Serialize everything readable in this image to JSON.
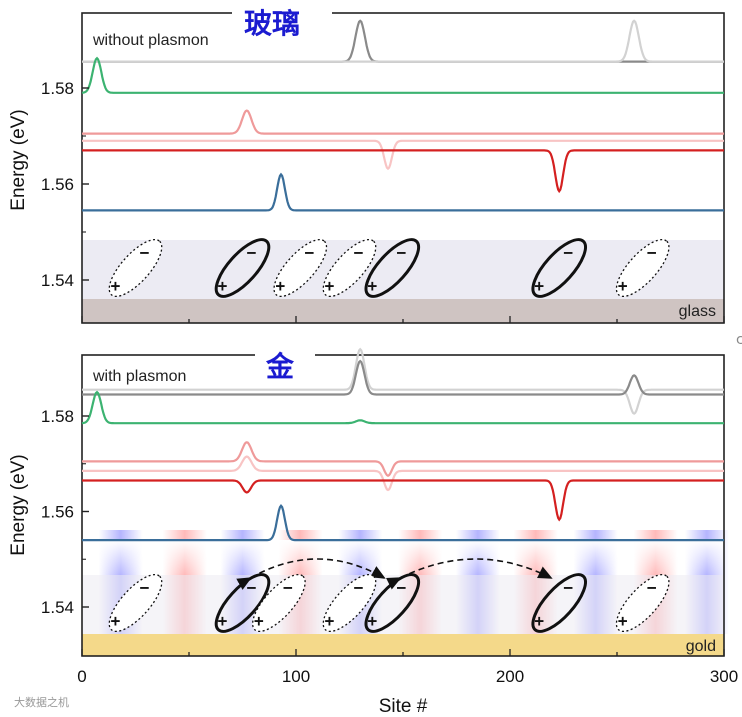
{
  "chart_data": {
    "type": "line",
    "xlabel": "Site #",
    "ylabel": "Energy (eV)",
    "xlim": [
      0,
      300
    ],
    "x_ticks": [
      0,
      100,
      200,
      300
    ],
    "ylim": [
      1.532,
      1.595
    ],
    "y_ticks": [
      1.54,
      1.56,
      1.58
    ],
    "y_tick_labels": [
      "1.54",
      "1.56",
      "1.58"
    ],
    "panels": [
      {
        "id": "top",
        "cn_title": "玻璃",
        "note": "without plasmon",
        "substrate_label": "glass",
        "series": [
          {
            "name": "gray",
            "color": "#8a8a8a",
            "baseline": 1.5855,
            "peaks": [
              {
                "x": 130,
                "amp": 0.0085,
                "w": 2.2
              }
            ]
          },
          {
            "name": "light-gray",
            "color": "#d2d2d2",
            "baseline": 1.5855,
            "peaks": [
              {
                "x": 258,
                "amp": 0.0085,
                "w": 2.2
              }
            ]
          },
          {
            "name": "green",
            "color": "#3cb371",
            "baseline": 1.579,
            "peaks": [
              {
                "x": 7,
                "amp": 0.0072,
                "w": 2.0
              }
            ]
          },
          {
            "name": "pink",
            "color": "#ef9a9a",
            "baseline": 1.5705,
            "peaks": [
              {
                "x": 77,
                "amp": 0.0048,
                "w": 2.2
              }
            ]
          },
          {
            "name": "light-pink",
            "color": "#f8c4c4",
            "baseline": 1.569,
            "peaks": [
              {
                "x": 143,
                "amp": -0.0058,
                "w": 1.8
              }
            ]
          },
          {
            "name": "red",
            "color": "#d42020",
            "baseline": 1.567,
            "peaks": [
              {
                "x": 223,
                "amp": -0.0085,
                "w": 1.8
              }
            ]
          },
          {
            "name": "blue",
            "color": "#3a6e9a",
            "baseline": 1.5545,
            "peaks": [
              {
                "x": 93,
                "amp": 0.0075,
                "w": 1.8
              }
            ]
          }
        ],
        "dipoles": [
          {
            "x": 25,
            "highlight": false
          },
          {
            "x": 75,
            "highlight": true
          },
          {
            "x": 102,
            "highlight": false
          },
          {
            "x": 125,
            "highlight": false
          },
          {
            "x": 145,
            "highlight": true
          },
          {
            "x": 223,
            "highlight": true
          },
          {
            "x": 262,
            "highlight": false
          }
        ]
      },
      {
        "id": "bottom",
        "cn_title": "金",
        "note": "with plasmon",
        "substrate_label": "gold",
        "series": [
          {
            "name": "light-gray",
            "color": "#d2d2d2",
            "baseline": 1.5855,
            "peaks": [
              {
                "x": 130,
                "amp": 0.0085,
                "w": 2.0
              },
              {
                "x": 258,
                "amp": -0.005,
                "w": 2.0
              }
            ]
          },
          {
            "name": "gray",
            "color": "#8a8a8a",
            "baseline": 1.5845,
            "peaks": [
              {
                "x": 130,
                "amp": 0.007,
                "w": 2.0
              },
              {
                "x": 258,
                "amp": 0.004,
                "w": 2.0
              }
            ]
          },
          {
            "name": "green",
            "color": "#3cb371",
            "baseline": 1.5785,
            "peaks": [
              {
                "x": 7,
                "amp": 0.0065,
                "w": 2.0
              },
              {
                "x": 130,
                "amp": 0.0006,
                "w": 2.0
              }
            ]
          },
          {
            "name": "pink",
            "color": "#ef9a9a",
            "baseline": 1.5705,
            "peaks": [
              {
                "x": 77,
                "amp": 0.004,
                "w": 2.2
              },
              {
                "x": 143,
                "amp": -0.003,
                "w": 1.8
              }
            ]
          },
          {
            "name": "light-pink",
            "color": "#f8c4c4",
            "baseline": 1.5685,
            "peaks": [
              {
                "x": 77,
                "amp": 0.003,
                "w": 2.2
              },
              {
                "x": 143,
                "amp": -0.004,
                "w": 1.8
              }
            ]
          },
          {
            "name": "red",
            "color": "#d42020",
            "baseline": 1.5665,
            "peaks": [
              {
                "x": 77,
                "amp": -0.0025,
                "w": 2.0
              },
              {
                "x": 223,
                "amp": -0.0082,
                "w": 1.8
              }
            ]
          },
          {
            "name": "blue",
            "color": "#3a6e9a",
            "baseline": 1.554,
            "peaks": [
              {
                "x": 93,
                "amp": 0.0072,
                "w": 1.8
              }
            ]
          }
        ],
        "dipoles": [
          {
            "x": 25,
            "highlight": false
          },
          {
            "x": 75,
            "highlight": true
          },
          {
            "x": 92,
            "highlight": false
          },
          {
            "x": 125,
            "highlight": false
          },
          {
            "x": 145,
            "highlight": true
          },
          {
            "x": 223,
            "highlight": true
          },
          {
            "x": 262,
            "highlight": false
          }
        ],
        "coupling_arrows": [
          [
            75,
            145
          ],
          [
            145,
            223
          ]
        ]
      }
    ]
  },
  "watermark": "大数据之机"
}
